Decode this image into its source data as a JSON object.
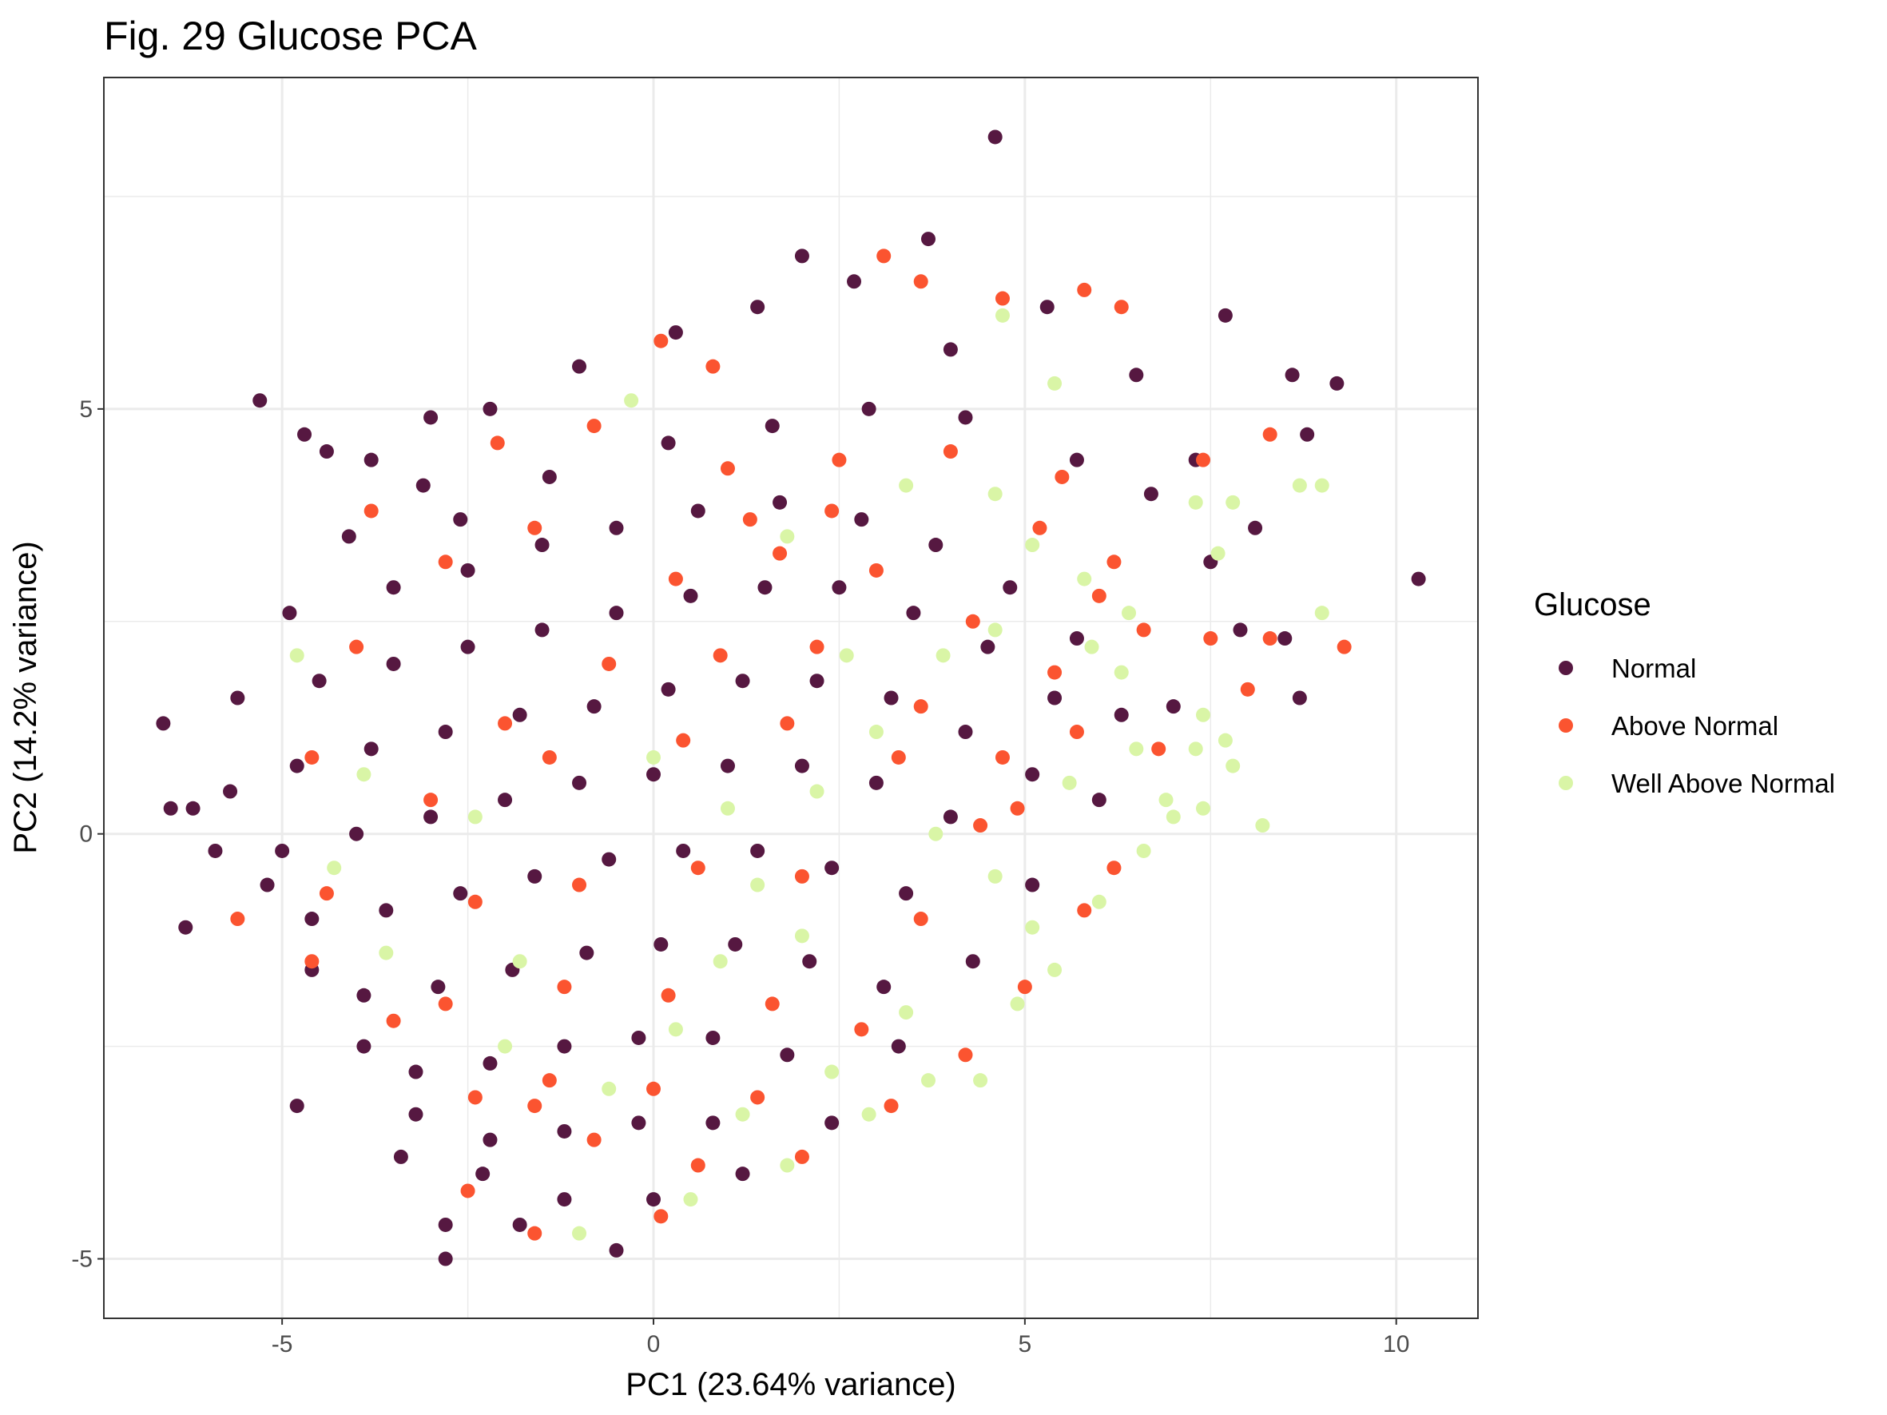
{
  "chart_data": {
    "type": "scatter",
    "title": "Fig. 29 Glucose PCA",
    "xlabel": "PC1 (23.64% variance)",
    "ylabel": "PC2 (14.2% variance)",
    "xlim": [
      -7.4,
      11.1
    ],
    "ylim": [
      -5.7,
      8.9
    ],
    "x_ticks": [
      -5,
      0,
      5,
      10
    ],
    "x_tick_labels": [
      "-5",
      "0",
      "5",
      "10"
    ],
    "y_ticks": [
      -5,
      0,
      5
    ],
    "y_tick_labels": [
      "-5",
      "0",
      "5"
    ],
    "grid": true,
    "legend": {
      "title": "Glucose",
      "position": "right"
    },
    "series": [
      {
        "name": "Normal",
        "color": "#561841",
        "points": [
          [
            4.6,
            8.2
          ],
          [
            3.7,
            7.0
          ],
          [
            2.0,
            6.8
          ],
          [
            -5.3,
            5.1
          ],
          [
            -4.7,
            4.7
          ],
          [
            -4.4,
            4.5
          ],
          [
            -6.6,
            1.3
          ],
          [
            -6.5,
            0.3
          ],
          [
            -6.3,
            -1.1
          ],
          [
            -6.2,
            0.3
          ],
          [
            -5.9,
            -0.2
          ],
          [
            -4.8,
            -3.2
          ],
          [
            -3.4,
            -3.8
          ],
          [
            -2.8,
            -4.6
          ],
          [
            -2.8,
            -5.0
          ],
          [
            -1.8,
            -4.6
          ],
          [
            -0.5,
            -4.9
          ],
          [
            10.3,
            3.0
          ],
          [
            9.2,
            5.3
          ],
          [
            8.8,
            4.7
          ],
          [
            8.6,
            5.4
          ],
          [
            8.7,
            1.6
          ],
          [
            8.5,
            2.3
          ],
          [
            7.7,
            6.1
          ],
          [
            7.3,
            4.4
          ],
          [
            8.1,
            3.6
          ],
          [
            6.5,
            5.4
          ],
          [
            5.3,
            6.2
          ],
          [
            4.0,
            5.7
          ],
          [
            2.7,
            6.5
          ],
          [
            1.4,
            6.2
          ],
          [
            0.3,
            5.9
          ],
          [
            -1.0,
            5.5
          ],
          [
            -2.2,
            5.0
          ],
          [
            -3.0,
            4.9
          ],
          [
            -3.8,
            4.4
          ],
          [
            -2.6,
            3.7
          ],
          [
            -1.4,
            4.2
          ],
          [
            0.2,
            4.6
          ],
          [
            1.6,
            4.8
          ],
          [
            2.9,
            5.0
          ],
          [
            4.2,
            4.9
          ],
          [
            5.7,
            4.4
          ],
          [
            6.7,
            4.0
          ],
          [
            7.5,
            3.2
          ],
          [
            7.9,
            2.4
          ],
          [
            7.0,
            1.5
          ],
          [
            6.0,
            0.4
          ],
          [
            5.1,
            -0.6
          ],
          [
            4.3,
            -1.5
          ],
          [
            3.3,
            -2.5
          ],
          [
            2.4,
            -3.4
          ],
          [
            1.2,
            -4.0
          ],
          [
            0.0,
            -4.3
          ],
          [
            -1.2,
            -4.3
          ],
          [
            -2.3,
            -4.0
          ],
          [
            -3.2,
            -3.3
          ],
          [
            -3.9,
            -2.5
          ],
          [
            -4.6,
            -1.6
          ],
          [
            -5.2,
            -0.6
          ],
          [
            -5.7,
            0.5
          ],
          [
            -5.6,
            1.6
          ],
          [
            -4.9,
            2.6
          ],
          [
            -4.1,
            3.5
          ],
          [
            -3.1,
            4.1
          ],
          [
            -3.5,
            2.9
          ],
          [
            -2.5,
            3.1
          ],
          [
            -1.5,
            3.4
          ],
          [
            -0.5,
            3.6
          ],
          [
            0.6,
            3.8
          ],
          [
            1.7,
            3.9
          ],
          [
            2.8,
            3.7
          ],
          [
            3.8,
            3.4
          ],
          [
            4.8,
            2.9
          ],
          [
            5.7,
            2.3
          ],
          [
            6.3,
            1.4
          ],
          [
            -4.5,
            1.8
          ],
          [
            -3.5,
            2.0
          ],
          [
            -2.5,
            2.2
          ],
          [
            -1.5,
            2.4
          ],
          [
            -0.5,
            2.6
          ],
          [
            0.5,
            2.8
          ],
          [
            1.5,
            2.9
          ],
          [
            2.5,
            2.9
          ],
          [
            3.5,
            2.6
          ],
          [
            4.5,
            2.2
          ],
          [
            5.4,
            1.6
          ],
          [
            -4.8,
            0.8
          ],
          [
            -3.8,
            1.0
          ],
          [
            -2.8,
            1.2
          ],
          [
            -1.8,
            1.4
          ],
          [
            -0.8,
            1.5
          ],
          [
            0.2,
            1.7
          ],
          [
            1.2,
            1.8
          ],
          [
            2.2,
            1.8
          ],
          [
            3.2,
            1.6
          ],
          [
            4.2,
            1.2
          ],
          [
            5.1,
            0.7
          ],
          [
            -5.0,
            -0.2
          ],
          [
            -4.0,
            0.0
          ],
          [
            -3.0,
            0.2
          ],
          [
            -2.0,
            0.4
          ],
          [
            -1.0,
            0.6
          ],
          [
            0.0,
            0.7
          ],
          [
            1.0,
            0.8
          ],
          [
            2.0,
            0.8
          ],
          [
            3.0,
            0.6
          ],
          [
            4.0,
            0.2
          ],
          [
            -4.6,
            -1.0
          ],
          [
            -3.6,
            -0.9
          ],
          [
            -2.6,
            -0.7
          ],
          [
            -1.6,
            -0.5
          ],
          [
            -0.6,
            -0.3
          ],
          [
            0.4,
            -0.2
          ],
          [
            1.4,
            -0.2
          ],
          [
            2.4,
            -0.4
          ],
          [
            3.4,
            -0.7
          ],
          [
            -3.9,
            -1.9
          ],
          [
            -2.9,
            -1.8
          ],
          [
            -1.9,
            -1.6
          ],
          [
            -0.9,
            -1.4
          ],
          [
            0.1,
            -1.3
          ],
          [
            1.1,
            -1.3
          ],
          [
            2.1,
            -1.5
          ],
          [
            3.1,
            -1.8
          ],
          [
            -3.2,
            -2.8
          ],
          [
            -2.2,
            -2.7
          ],
          [
            -1.2,
            -2.5
          ],
          [
            -0.2,
            -2.4
          ],
          [
            0.8,
            -2.4
          ],
          [
            1.8,
            -2.6
          ],
          [
            -2.2,
            -3.6
          ],
          [
            -1.2,
            -3.5
          ],
          [
            -0.2,
            -3.4
          ],
          [
            0.8,
            -3.4
          ]
        ]
      },
      {
        "name": "Above Normal",
        "color": "#fb5430",
        "points": [
          [
            3.1,
            6.8
          ],
          [
            3.6,
            6.5
          ],
          [
            5.8,
            6.4
          ],
          [
            6.3,
            6.2
          ],
          [
            4.7,
            6.3
          ],
          [
            0.1,
            5.8
          ],
          [
            0.8,
            5.5
          ],
          [
            -2.1,
            4.6
          ],
          [
            8.3,
            4.7
          ],
          [
            7.4,
            4.4
          ],
          [
            8.3,
            2.3
          ],
          [
            9.3,
            2.2
          ],
          [
            8.0,
            1.7
          ],
          [
            7.5,
            2.3
          ],
          [
            -5.6,
            -1.0
          ],
          [
            -4.6,
            -1.5
          ],
          [
            -2.5,
            -4.2
          ],
          [
            -1.6,
            -4.7
          ],
          [
            0.1,
            -4.5
          ],
          [
            -1.6,
            -3.2
          ],
          [
            -3.8,
            3.8
          ],
          [
            -0.8,
            4.8
          ],
          [
            1.0,
            4.3
          ],
          [
            2.5,
            4.4
          ],
          [
            4.0,
            4.5
          ],
          [
            5.5,
            4.2
          ],
          [
            6.2,
            3.2
          ],
          [
            6.6,
            2.4
          ],
          [
            6.8,
            1.0
          ],
          [
            6.2,
            -0.4
          ],
          [
            5.8,
            -0.9
          ],
          [
            5.0,
            -1.8
          ],
          [
            4.2,
            -2.6
          ],
          [
            3.2,
            -3.2
          ],
          [
            2.0,
            -3.8
          ],
          [
            0.6,
            -3.9
          ],
          [
            -0.8,
            -3.6
          ],
          [
            -2.4,
            -3.1
          ],
          [
            -3.5,
            -2.2
          ],
          [
            -4.4,
            -0.7
          ],
          [
            -4.6,
            0.9
          ],
          [
            -4.0,
            2.2
          ],
          [
            -2.8,
            3.2
          ],
          [
            -1.6,
            3.6
          ],
          [
            0.3,
            3.0
          ],
          [
            1.7,
            3.3
          ],
          [
            3.0,
            3.1
          ],
          [
            4.3,
            2.5
          ],
          [
            5.4,
            1.9
          ],
          [
            -2.0,
            1.3
          ],
          [
            -0.6,
            2.0
          ],
          [
            0.9,
            2.1
          ],
          [
            2.2,
            2.2
          ],
          [
            3.6,
            1.5
          ],
          [
            4.7,
            0.9
          ],
          [
            -3.0,
            0.4
          ],
          [
            -1.4,
            0.9
          ],
          [
            0.4,
            1.1
          ],
          [
            1.8,
            1.3
          ],
          [
            3.3,
            0.9
          ],
          [
            4.4,
            0.1
          ],
          [
            -2.4,
            -0.8
          ],
          [
            -1.0,
            -0.6
          ],
          [
            0.6,
            -0.4
          ],
          [
            2.0,
            -0.5
          ],
          [
            3.6,
            -1.0
          ],
          [
            -2.8,
            -2.0
          ],
          [
            -1.2,
            -1.8
          ],
          [
            0.2,
            -1.9
          ],
          [
            1.6,
            -2.0
          ],
          [
            2.8,
            -2.3
          ],
          [
            -1.4,
            -2.9
          ],
          [
            0.0,
            -3.0
          ],
          [
            1.4,
            -3.1
          ],
          [
            5.2,
            3.6
          ],
          [
            6.0,
            2.8
          ],
          [
            5.7,
            1.2
          ],
          [
            4.9,
            0.3
          ],
          [
            2.4,
            3.8
          ],
          [
            1.3,
            3.7
          ]
        ]
      },
      {
        "name": "Well Above Normal",
        "color": "#d9f5a6",
        "points": [
          [
            4.7,
            6.1
          ],
          [
            5.4,
            5.3
          ],
          [
            8.7,
            4.1
          ],
          [
            9.0,
            4.1
          ],
          [
            7.8,
            3.9
          ],
          [
            7.3,
            3.9
          ],
          [
            9.0,
            2.6
          ],
          [
            7.6,
            3.3
          ],
          [
            7.8,
            0.8
          ],
          [
            8.2,
            0.1
          ],
          [
            7.4,
            0.3
          ],
          [
            7.0,
            0.2
          ],
          [
            7.3,
            1.0
          ],
          [
            7.7,
            1.1
          ],
          [
            7.4,
            1.4
          ],
          [
            -1.0,
            -4.7
          ],
          [
            0.5,
            -4.3
          ],
          [
            1.8,
            -3.9
          ],
          [
            2.9,
            -3.3
          ],
          [
            3.7,
            -2.9
          ],
          [
            4.4,
            -2.9
          ],
          [
            4.9,
            -2.0
          ],
          [
            5.4,
            -1.6
          ],
          [
            6.0,
            -0.8
          ],
          [
            6.6,
            -0.2
          ],
          [
            6.9,
            0.4
          ],
          [
            6.5,
            1.0
          ],
          [
            6.3,
            1.9
          ],
          [
            6.4,
            2.6
          ],
          [
            5.8,
            3.0
          ],
          [
            5.1,
            3.4
          ],
          [
            4.6,
            2.4
          ],
          [
            3.9,
            2.1
          ],
          [
            3.0,
            1.2
          ],
          [
            2.2,
            0.5
          ],
          [
            1.4,
            -0.6
          ],
          [
            0.9,
            -1.5
          ],
          [
            0.3,
            -2.3
          ],
          [
            -0.6,
            -3.0
          ],
          [
            -1.8,
            -1.5
          ],
          [
            -2.4,
            0.2
          ],
          [
            -3.9,
            0.7
          ],
          [
            -4.8,
            2.1
          ],
          [
            -4.3,
            -0.4
          ],
          [
            -3.6,
            -1.4
          ],
          [
            -2.0,
            -2.5
          ],
          [
            0.0,
            0.9
          ],
          [
            1.8,
            3.5
          ],
          [
            3.4,
            4.1
          ],
          [
            4.6,
            4.0
          ],
          [
            -0.3,
            5.1
          ],
          [
            2.6,
            2.1
          ],
          [
            3.8,
            0.0
          ],
          [
            4.6,
            -0.5
          ],
          [
            5.1,
            -1.1
          ],
          [
            3.4,
            -2.1
          ],
          [
            2.4,
            -2.8
          ],
          [
            1.2,
            -3.3
          ],
          [
            5.9,
            2.2
          ],
          [
            5.6,
            0.6
          ],
          [
            2.0,
            -1.2
          ],
          [
            1.0,
            0.3
          ]
        ]
      }
    ]
  }
}
